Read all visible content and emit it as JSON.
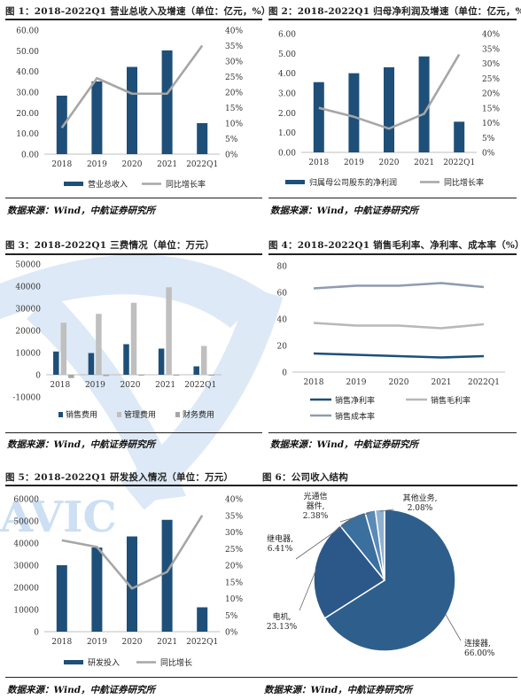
{
  "colors": {
    "navy": "#1e4f78",
    "gray": "#a6a6a6",
    "lightgray": "#bfbfbf",
    "watermark": "#7aa9d6"
  },
  "watermark": {
    "text": "AVIC"
  },
  "source_text": "数据来源：Wind，中航证券研究所",
  "figures": [
    {
      "title": "图 1：2018-2022Q1 营业总收入及增速（单位：亿元，%）"
    },
    {
      "title": "图 2：2018-2022Q1 归母净利润及增速（单位：亿元，%）"
    },
    {
      "title": "图 3：2018-2022Q1 三费情况（单位：万元）"
    },
    {
      "title": "图 4：2018-2022Q1 销售毛利率、净利率、成本率（%）"
    },
    {
      "title": "图 5：2018-2022Q1 研发投入情况（单位：万元）"
    },
    {
      "title": "图 6：公司收入结构"
    }
  ],
  "chart_data": [
    {
      "type": "bar",
      "categories": [
        "2018",
        "2019",
        "2020",
        "2021",
        "2022Q1"
      ],
      "series": [
        {
          "name": "营业总收入",
          "values": [
            28.3,
            35.2,
            42.2,
            50.2,
            15.0
          ],
          "axis": "left",
          "kind": "bar"
        },
        {
          "name": "同比增长率",
          "values": [
            8.5,
            24.5,
            19.5,
            19.5,
            35.0
          ],
          "axis": "right",
          "kind": "line"
        }
      ],
      "ylim": [
        0,
        60
      ],
      "yticks": [
        "0.00",
        "10.00",
        "20.00",
        "30.00",
        "40.00",
        "50.00",
        "60.00"
      ],
      "y2lim": [
        0,
        40
      ],
      "y2ticks": [
        "0%",
        "5%",
        "10%",
        "15%",
        "20%",
        "25%",
        "30%",
        "35%",
        "40%"
      ],
      "legend": "bottom",
      "grid": false
    },
    {
      "type": "bar",
      "categories": [
        "2018",
        "2019",
        "2020",
        "2021",
        "2022Q1"
      ],
      "series": [
        {
          "name": "归属母公司股东的净利润",
          "values": [
            3.55,
            4.0,
            4.3,
            4.85,
            1.55
          ],
          "axis": "left",
          "kind": "bar"
        },
        {
          "name": "同比增长率",
          "values": [
            15.0,
            12.0,
            8.0,
            13.0,
            33.0
          ],
          "axis": "right",
          "kind": "line"
        }
      ],
      "ylim": [
        0,
        6
      ],
      "yticks": [
        "0.00",
        "1.00",
        "2.00",
        "3.00",
        "4.00",
        "5.00",
        "6.00"
      ],
      "y2lim": [
        0,
        40
      ],
      "y2ticks": [
        "0%",
        "5%",
        "10%",
        "15%",
        "20%",
        "25%",
        "30%",
        "35%",
        "40%"
      ],
      "legend": "bottom",
      "grid": false
    },
    {
      "type": "bar",
      "categories": [
        "2018",
        "2019",
        "2020",
        "2021",
        "2022Q1"
      ],
      "series": [
        {
          "name": "销售费用",
          "values": [
            10500,
            9800,
            13800,
            11800,
            3800
          ]
        },
        {
          "name": "管理费用",
          "values": [
            23500,
            27500,
            32500,
            39500,
            13000
          ]
        },
        {
          "name": "财务费用",
          "values": [
            -1500,
            -600,
            -300,
            -400,
            -200
          ]
        }
      ],
      "ylim": [
        -10000,
        50000
      ],
      "yticks": [
        "-10000",
        "0",
        "10000",
        "20000",
        "30000",
        "40000",
        "50000"
      ],
      "legend": "bottom",
      "grid": false
    },
    {
      "type": "line",
      "categories": [
        "2018",
        "2019",
        "2020",
        "2021",
        "2022Q1"
      ],
      "series": [
        {
          "name": "销售净利率",
          "values": [
            14.0,
            13.0,
            12.0,
            11.0,
            12.0
          ]
        },
        {
          "name": "销售毛利率",
          "values": [
            37.0,
            35.0,
            35.0,
            33.0,
            36.0
          ]
        },
        {
          "name": "销售成本率",
          "values": [
            63.0,
            65.0,
            65.0,
            67.0,
            64.0
          ]
        }
      ],
      "ylim": [
        0,
        80
      ],
      "yticks": [
        "0",
        "20",
        "40",
        "60",
        "80"
      ],
      "legend": "bottom",
      "grid": false
    },
    {
      "type": "bar",
      "categories": [
        "2018",
        "2019",
        "2020",
        "2021",
        "2022Q1"
      ],
      "series": [
        {
          "name": "研发投入",
          "values": [
            30000,
            38000,
            43000,
            50500,
            11000
          ],
          "axis": "left",
          "kind": "bar"
        },
        {
          "name": "同比增长",
          "values": [
            27.5,
            25.5,
            13.0,
            18.0,
            35.0
          ],
          "axis": "right",
          "kind": "line"
        }
      ],
      "ylim": [
        0,
        60000
      ],
      "yticks": [
        "0",
        "10000",
        "20000",
        "30000",
        "40000",
        "50000",
        "60000"
      ],
      "y2lim": [
        0,
        40
      ],
      "y2ticks": [
        "0%",
        "5%",
        "10%",
        "15%",
        "20%",
        "25%",
        "30%",
        "35%",
        "40%"
      ],
      "legend": "bottom",
      "grid": false
    },
    {
      "type": "pie",
      "slices": [
        {
          "name": "连接器",
          "label_lines": [
            "连接器,",
            "66.00%"
          ],
          "value": 66.0
        },
        {
          "name": "电机",
          "label_lines": [
            "电机,",
            "23.13%"
          ],
          "value": 23.13
        },
        {
          "name": "继电器",
          "label_lines": [
            "继电器,",
            "6.41%"
          ],
          "value": 6.41
        },
        {
          "name": "光通信器件",
          "label_lines": [
            "光通信",
            "器件,",
            "2.38%"
          ],
          "value": 2.38
        },
        {
          "name": "其他业务",
          "label_lines": [
            "其他业务,",
            "2.08%"
          ],
          "value": 2.08
        }
      ],
      "colors": [
        "#2e5f8c",
        "#2b5888",
        "#3a6f9e",
        "#5b8ab5",
        "#8fb0d0"
      ],
      "legend": "none"
    }
  ]
}
